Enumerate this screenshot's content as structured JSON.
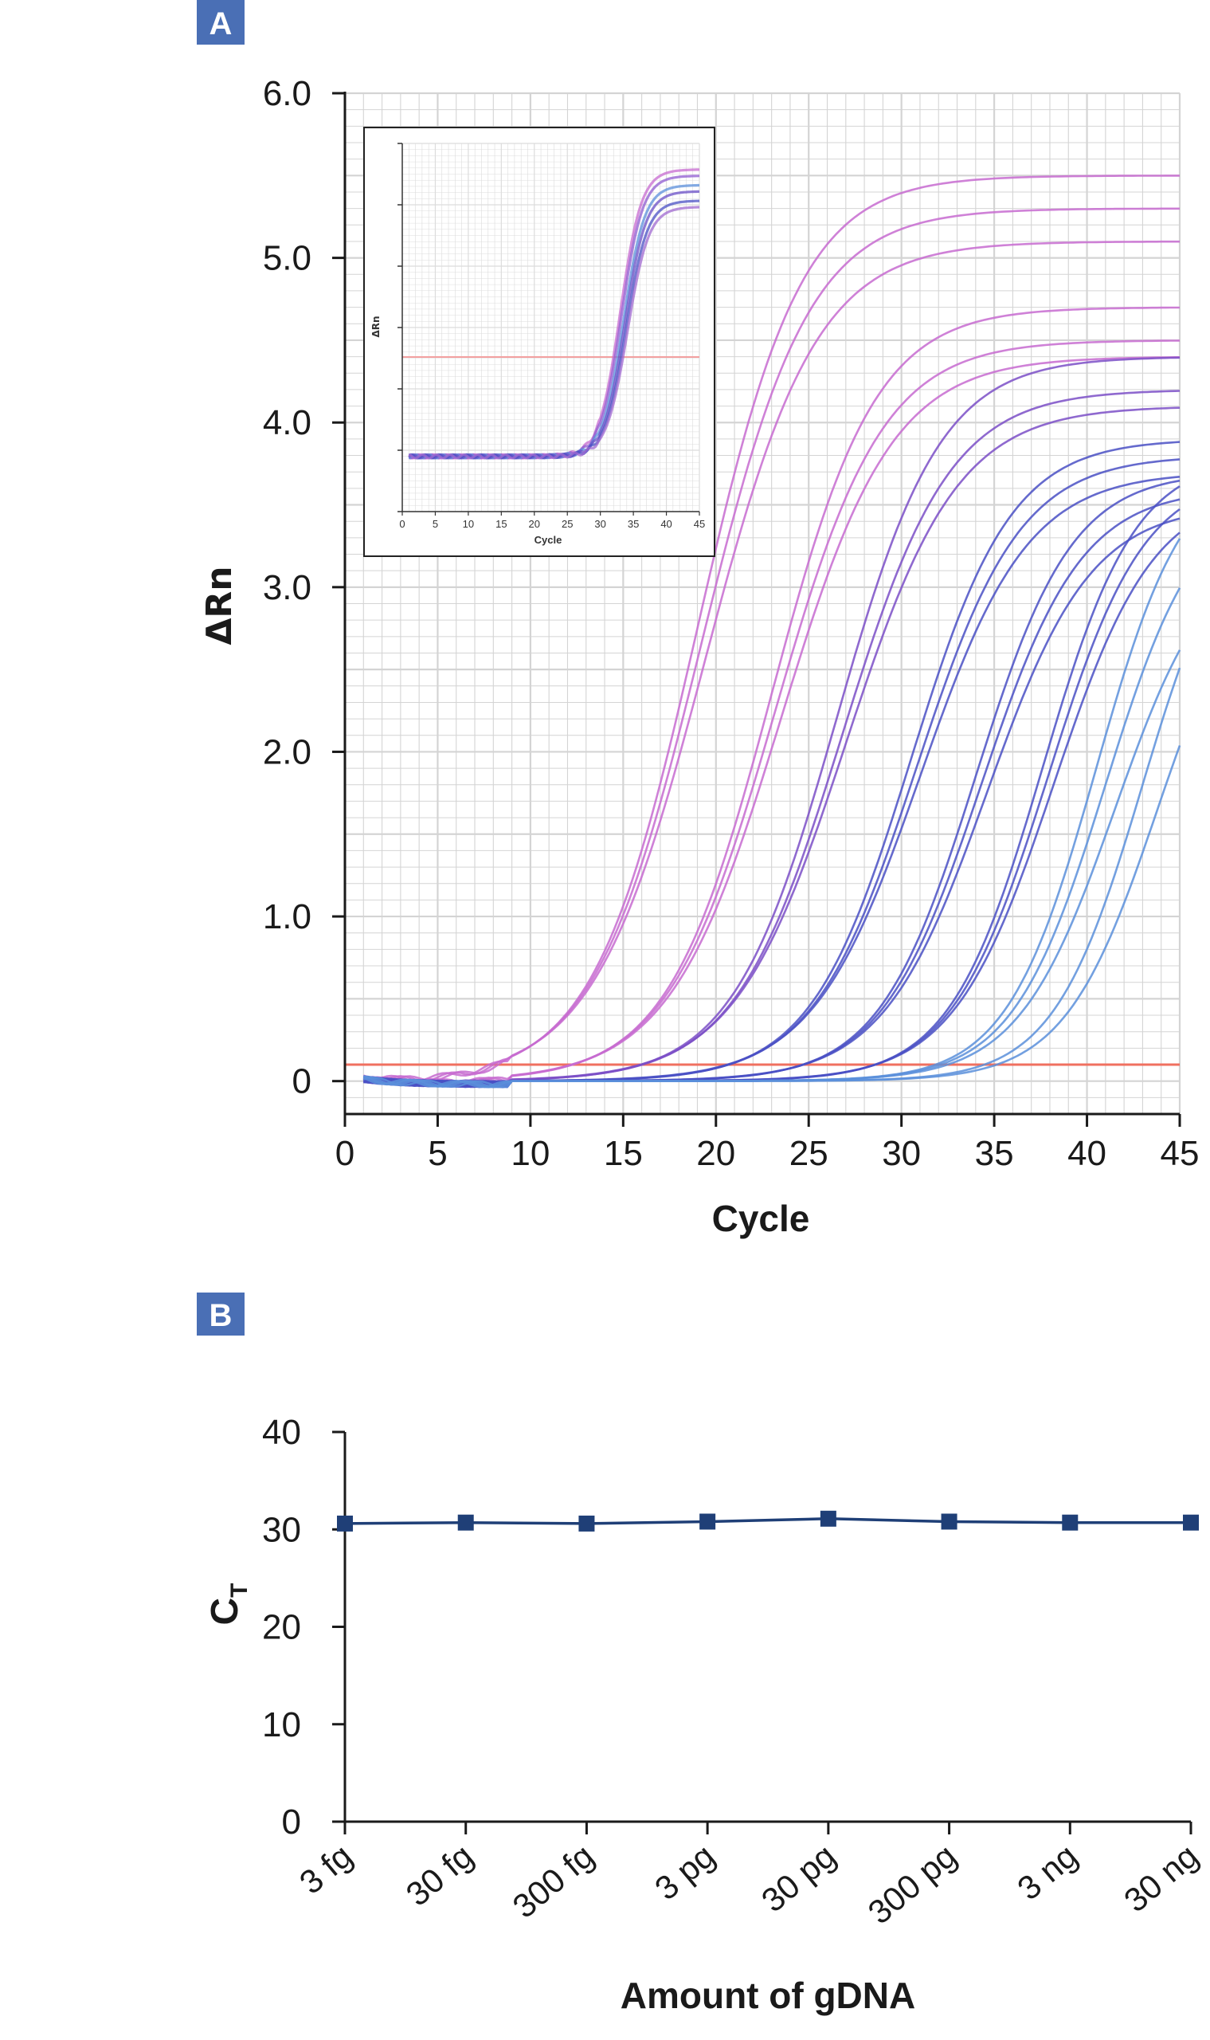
{
  "panels": {
    "a": {
      "label": "A"
    },
    "b": {
      "label": "B"
    }
  },
  "colors": {
    "badge": "#4a6fb5",
    "threshold": "#f07060",
    "series_navy": "#1f3f77",
    "curve_pink": "#c76bd0",
    "curve_purple": "#7b4fc7",
    "curve_blue": "#4a50c4",
    "curve_lightblue": "#5b8fdb",
    "grid": "#d4d4d4"
  },
  "chart_data": [
    {
      "type": "line",
      "panel": "A",
      "xlabel": "Cycle",
      "ylabel": "ΔRn",
      "xlim": [
        0,
        45
      ],
      "ylim": [
        -0.2,
        6.0
      ],
      "x_ticks": [
        "0",
        "5",
        "10",
        "15",
        "20",
        "25",
        "30",
        "35",
        "40",
        "45"
      ],
      "y_ticks": [
        "0",
        "1.0",
        "2.0",
        "3.0",
        "4.0",
        "5.0",
        "6.0"
      ],
      "threshold": 0.1,
      "grid": true,
      "curve_model": "sigmoid: dRn = plateau / (1 + exp(-(cycle - midpoint) / slope))",
      "curve_groups": [
        {
          "color": "curve_pink",
          "replicates": [
            {
              "midpoint": 19.0,
              "plateau": 5.5,
              "slope": 2.8
            },
            {
              "midpoint": 19.2,
              "plateau": 5.3,
              "slope": 2.9
            },
            {
              "midpoint": 19.4,
              "plateau": 5.1,
              "slope": 3.0
            }
          ]
        },
        {
          "color": "curve_pink",
          "replicates": [
            {
              "midpoint": 23.0,
              "plateau": 4.7,
              "slope": 2.8
            },
            {
              "midpoint": 23.2,
              "plateau": 4.5,
              "slope": 2.9
            },
            {
              "midpoint": 23.5,
              "plateau": 4.4,
              "slope": 3.0
            }
          ]
        },
        {
          "color": "curve_purple",
          "replicates": [
            {
              "midpoint": 26.5,
              "plateau": 4.4,
              "slope": 2.8
            },
            {
              "midpoint": 26.8,
              "plateau": 4.2,
              "slope": 2.9
            },
            {
              "midpoint": 27.0,
              "plateau": 4.1,
              "slope": 3.0
            }
          ]
        },
        {
          "color": "curve_blue",
          "replicates": [
            {
              "midpoint": 30.5,
              "plateau": 3.9,
              "slope": 2.7
            },
            {
              "midpoint": 30.8,
              "plateau": 3.8,
              "slope": 2.8
            },
            {
              "midpoint": 31.0,
              "plateau": 3.7,
              "slope": 2.9
            }
          ]
        },
        {
          "color": "curve_blue",
          "replicates": [
            {
              "midpoint": 34.0,
              "plateau": 3.7,
              "slope": 2.6
            },
            {
              "midpoint": 34.3,
              "plateau": 3.6,
              "slope": 2.7
            },
            {
              "midpoint": 34.6,
              "plateau": 3.5,
              "slope": 2.8
            }
          ]
        },
        {
          "color": "curve_blue",
          "replicates": [
            {
              "midpoint": 37.6,
              "plateau": 3.8,
              "slope": 2.5
            },
            {
              "midpoint": 37.9,
              "plateau": 3.7,
              "slope": 2.6
            },
            {
              "midpoint": 38.2,
              "plateau": 3.6,
              "slope": 2.7
            }
          ]
        },
        {
          "color": "curve_lightblue",
          "replicates": [
            {
              "midpoint": 40.5,
              "plateau": 3.8,
              "slope": 2.4
            },
            {
              "midpoint": 41.0,
              "plateau": 3.6,
              "slope": 2.5
            },
            {
              "midpoint": 41.5,
              "plateau": 3.3,
              "slope": 2.6
            }
          ]
        },
        {
          "color": "curve_lightblue",
          "replicates": [
            {
              "midpoint": 43.0,
              "plateau": 3.6,
              "slope": 2.4
            },
            {
              "midpoint": 43.8,
              "plateau": 3.3,
              "slope": 2.5
            }
          ]
        }
      ],
      "inset": {
        "xlabel": "Cycle",
        "ylabel": "ΔRn",
        "xlim": [
          0,
          45
        ],
        "x_ticks": [
          "0",
          "5",
          "10",
          "15",
          "20",
          "25",
          "30",
          "35",
          "40",
          "45"
        ],
        "threshold_fraction_of_height": 0.6,
        "curves": [
          {
            "midpoint": 33.0,
            "plateau_fraction": 0.92
          },
          {
            "midpoint": 33.2,
            "plateau_fraction": 0.9
          },
          {
            "midpoint": 33.5,
            "plateau_fraction": 0.87
          },
          {
            "midpoint": 33.7,
            "plateau_fraction": 0.85
          },
          {
            "midpoint": 33.9,
            "plateau_fraction": 0.82
          },
          {
            "midpoint": 34.1,
            "plateau_fraction": 0.8
          }
        ]
      }
    },
    {
      "type": "line",
      "panel": "B",
      "xlabel": "Amount of gDNA",
      "ylabel": "C",
      "ylabel_subscript": "T",
      "categories": [
        "3 fg",
        "30 fg",
        "300 fg",
        "3 pg",
        "30 pg",
        "300 pg",
        "3 ng",
        "30 ng"
      ],
      "values": [
        30.6,
        30.7,
        30.6,
        30.8,
        31.1,
        30.8,
        30.7,
        30.7
      ],
      "ylim": [
        0,
        40
      ],
      "y_ticks": [
        "0",
        "10",
        "20",
        "30",
        "40"
      ],
      "marker": "square"
    }
  ]
}
